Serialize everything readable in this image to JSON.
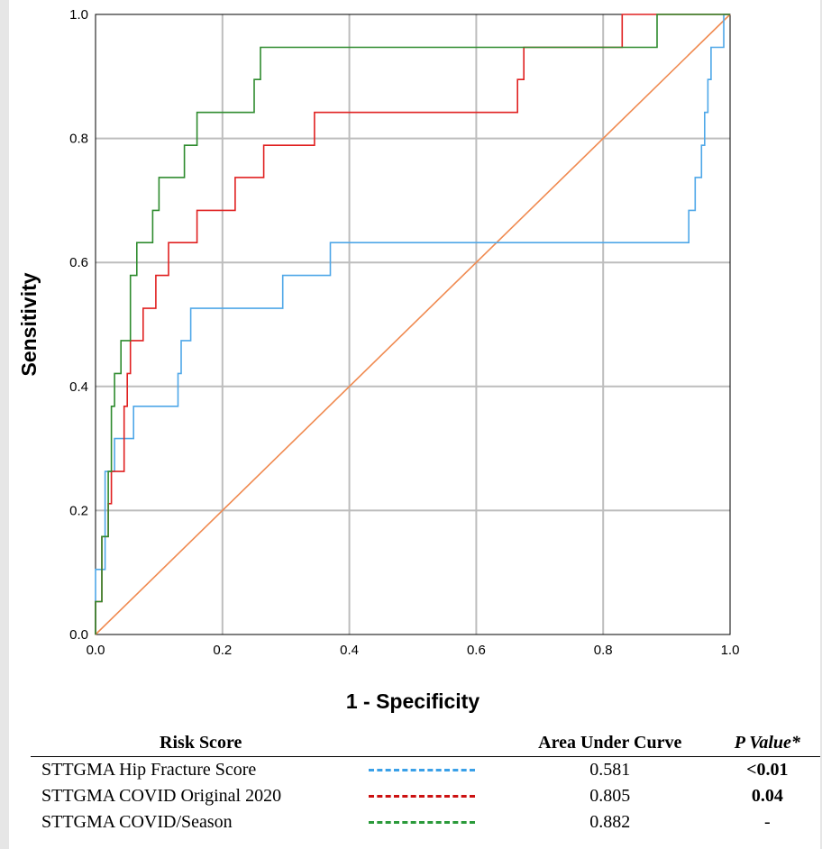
{
  "chart_data": {
    "type": "line",
    "xlabel": "1 - Specificity",
    "ylabel": "Sensitivity",
    "xlim": [
      0.0,
      1.0
    ],
    "ylim": [
      0.0,
      1.0
    ],
    "x_ticks": [
      "0.0",
      "0.2",
      "0.4",
      "0.6",
      "0.8",
      "1.0"
    ],
    "y_ticks": [
      "0.0",
      "0.2",
      "0.4",
      "0.6",
      "0.8",
      "1.0"
    ],
    "grid": true,
    "series": [
      {
        "name": "STTGMA Hip Fracture Score",
        "color": "#4ea7e8",
        "points": [
          [
            0,
            0
          ],
          [
            0,
            0.105
          ],
          [
            0.015,
            0.105
          ],
          [
            0.015,
            0.263
          ],
          [
            0.03,
            0.263
          ],
          [
            0.03,
            0.316
          ],
          [
            0.06,
            0.316
          ],
          [
            0.06,
            0.368
          ],
          [
            0.13,
            0.368
          ],
          [
            0.13,
            0.421
          ],
          [
            0.135,
            0.421
          ],
          [
            0.135,
            0.474
          ],
          [
            0.15,
            0.474
          ],
          [
            0.15,
            0.526
          ],
          [
            0.295,
            0.526
          ],
          [
            0.295,
            0.579
          ],
          [
            0.37,
            0.579
          ],
          [
            0.37,
            0.632
          ],
          [
            0.935,
            0.632
          ],
          [
            0.935,
            0.684
          ],
          [
            0.945,
            0.684
          ],
          [
            0.945,
            0.737
          ],
          [
            0.955,
            0.737
          ],
          [
            0.955,
            0.789
          ],
          [
            0.96,
            0.789
          ],
          [
            0.96,
            0.842
          ],
          [
            0.965,
            0.842
          ],
          [
            0.965,
            0.895
          ],
          [
            0.97,
            0.895
          ],
          [
            0.97,
            0.947
          ],
          [
            0.99,
            0.947
          ],
          [
            0.99,
            1.0
          ],
          [
            1.0,
            1.0
          ]
        ]
      },
      {
        "name": "STTGMA COVID Original 2020",
        "color": "#e02020",
        "points": [
          [
            0,
            0
          ],
          [
            0,
            0.053
          ],
          [
            0.01,
            0.053
          ],
          [
            0.01,
            0.158
          ],
          [
            0.02,
            0.158
          ],
          [
            0.02,
            0.211
          ],
          [
            0.025,
            0.211
          ],
          [
            0.025,
            0.263
          ],
          [
            0.045,
            0.263
          ],
          [
            0.045,
            0.368
          ],
          [
            0.05,
            0.368
          ],
          [
            0.05,
            0.421
          ],
          [
            0.055,
            0.421
          ],
          [
            0.055,
            0.474
          ],
          [
            0.075,
            0.474
          ],
          [
            0.075,
            0.526
          ],
          [
            0.095,
            0.526
          ],
          [
            0.095,
            0.579
          ],
          [
            0.115,
            0.579
          ],
          [
            0.115,
            0.632
          ],
          [
            0.16,
            0.632
          ],
          [
            0.16,
            0.684
          ],
          [
            0.22,
            0.684
          ],
          [
            0.22,
            0.737
          ],
          [
            0.265,
            0.737
          ],
          [
            0.265,
            0.789
          ],
          [
            0.345,
            0.789
          ],
          [
            0.345,
            0.842
          ],
          [
            0.665,
            0.842
          ],
          [
            0.665,
            0.895
          ],
          [
            0.675,
            0.895
          ],
          [
            0.675,
            0.947
          ],
          [
            0.83,
            0.947
          ],
          [
            0.83,
            1.0
          ],
          [
            1.0,
            1.0
          ]
        ]
      },
      {
        "name": "STTGMA COVID/Season",
        "color": "#2e8b2e",
        "points": [
          [
            0,
            0
          ],
          [
            0,
            0.053
          ],
          [
            0.01,
            0.053
          ],
          [
            0.01,
            0.158
          ],
          [
            0.02,
            0.158
          ],
          [
            0.02,
            0.263
          ],
          [
            0.025,
            0.263
          ],
          [
            0.025,
            0.368
          ],
          [
            0.03,
            0.368
          ],
          [
            0.03,
            0.421
          ],
          [
            0.04,
            0.421
          ],
          [
            0.04,
            0.474
          ],
          [
            0.055,
            0.474
          ],
          [
            0.055,
            0.579
          ],
          [
            0.065,
            0.579
          ],
          [
            0.065,
            0.632
          ],
          [
            0.09,
            0.632
          ],
          [
            0.09,
            0.684
          ],
          [
            0.1,
            0.684
          ],
          [
            0.1,
            0.737
          ],
          [
            0.14,
            0.737
          ],
          [
            0.14,
            0.789
          ],
          [
            0.16,
            0.789
          ],
          [
            0.16,
            0.842
          ],
          [
            0.25,
            0.842
          ],
          [
            0.25,
            0.895
          ],
          [
            0.26,
            0.895
          ],
          [
            0.26,
            0.947
          ],
          [
            0.885,
            0.947
          ],
          [
            0.885,
            1.0
          ],
          [
            1.0,
            1.0
          ]
        ]
      },
      {
        "name": "Reference Line",
        "color": "#f08a50",
        "points": [
          [
            0,
            0
          ],
          [
            1,
            1
          ]
        ]
      }
    ]
  },
  "legend_table": {
    "header": {
      "risk_score": "Risk Score",
      "auc": "Area Under Curve",
      "p_value": "P Value*"
    },
    "rows": [
      {
        "name": "STTGMA Hip Fracture Score",
        "line_color": "#3aa0e8",
        "auc": "0.581",
        "p": "<0.01",
        "p_bold": true
      },
      {
        "name": "STTGMA COVID Original 2020",
        "line_color": "#cc1111",
        "auc": "0.805",
        "p": "0.04",
        "p_bold": true
      },
      {
        "name": "STTGMA COVID/Season",
        "line_color": "#2a9a3a",
        "auc": "0.882",
        "p": "-",
        "p_bold": false
      }
    ]
  }
}
